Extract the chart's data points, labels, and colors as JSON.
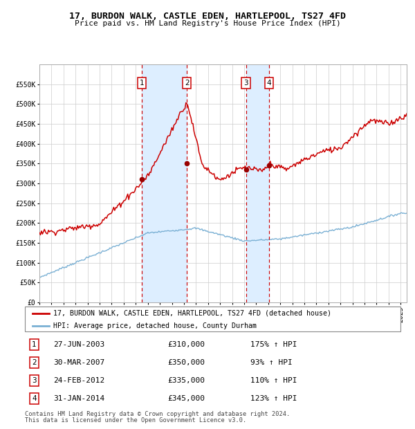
{
  "title": "17, BURDON WALK, CASTLE EDEN, HARTLEPOOL, TS27 4FD",
  "subtitle": "Price paid vs. HM Land Registry's House Price Index (HPI)",
  "legend_label_red": "17, BURDON WALK, CASTLE EDEN, HARTLEPOOL, TS27 4FD (detached house)",
  "legend_label_blue": "HPI: Average price, detached house, County Durham",
  "footer1": "Contains HM Land Registry data © Crown copyright and database right 2024.",
  "footer2": "This data is licensed under the Open Government Licence v3.0.",
  "transactions": [
    {
      "num": 1,
      "date": "27-JUN-2003",
      "price": 310000,
      "pct": "175%",
      "dir": "↑",
      "year": 2003.49
    },
    {
      "num": 2,
      "date": "30-MAR-2007",
      "price": 350000,
      "pct": "93%",
      "dir": "↑",
      "year": 2007.25
    },
    {
      "num": 3,
      "date": "24-FEB-2012",
      "price": 335000,
      "pct": "110%",
      "dir": "↑",
      "year": 2012.15
    },
    {
      "num": 4,
      "date": "31-JAN-2014",
      "price": 345000,
      "pct": "123%",
      "dir": "↑",
      "year": 2014.08
    }
  ],
  "ylim": [
    0,
    600000
  ],
  "xlim_start": 1995.0,
  "xlim_end": 2025.5,
  "background_color": "#ffffff",
  "grid_color": "#cccccc",
  "red_line_color": "#cc0000",
  "blue_line_color": "#7ab0d4",
  "shade_color": "#ddeeff",
  "dashed_color": "#cc0000",
  "marker_color": "#990000",
  "box_color": "#cc0000",
  "yticks": [
    0,
    50000,
    100000,
    150000,
    200000,
    250000,
    300000,
    350000,
    400000,
    450000,
    500000,
    550000
  ],
  "ytick_labels": [
    "£0",
    "£50K",
    "£100K",
    "£150K",
    "£200K",
    "£250K",
    "£300K",
    "£350K",
    "£400K",
    "£450K",
    "£500K",
    "£550K"
  ]
}
